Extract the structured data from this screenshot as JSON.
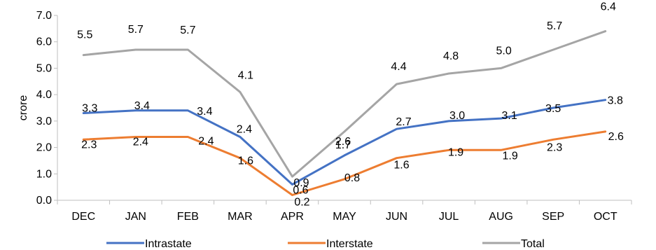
{
  "chart_data": {
    "type": "line",
    "ylabel": "crore",
    "ylim": [
      0,
      7
    ],
    "yticks": [
      "0.0",
      "1.0",
      "2.0",
      "3.0",
      "4.0",
      "5.0",
      "6.0",
      "7.0"
    ],
    "categories": [
      "DEC",
      "JAN",
      "FEB",
      "MAR",
      "APR",
      "MAY",
      "JUN",
      "JUL",
      "AUG",
      "SEP",
      "OCT"
    ],
    "grid": false,
    "legend": "bottom",
    "series": [
      {
        "name": "Intrastate",
        "color": "#4472C4",
        "values": [
          3.3,
          3.4,
          3.4,
          2.4,
          0.6,
          1.7,
          2.7,
          3.0,
          3.1,
          3.5,
          3.8
        ],
        "labels": [
          "3.3",
          "3.4",
          "3.4",
          "2.4",
          "0.6",
          "1.7",
          "2.7",
          "3.0",
          "3.1",
          "3.5",
          "3.8"
        ]
      },
      {
        "name": "Interstate",
        "color": "#ED7D31",
        "values": [
          2.3,
          2.4,
          2.4,
          1.6,
          0.2,
          0.8,
          1.6,
          1.9,
          1.9,
          2.3,
          2.6
        ],
        "labels": [
          "2.3",
          "2.4",
          "2.4",
          "1.6",
          "0.2",
          "0.8",
          "1.6",
          "1.9",
          "1.9",
          "2.3",
          "2.6"
        ]
      },
      {
        "name": "Total",
        "color": "#A5A5A5",
        "values": [
          5.5,
          5.7,
          5.7,
          4.1,
          0.9,
          2.6,
          4.4,
          4.8,
          5.0,
          5.7,
          6.4
        ],
        "labels": [
          "5.5",
          "5.7",
          "5.7",
          "4.1",
          "0.9",
          "2.6",
          "4.4",
          "4.8",
          "5.0",
          "5.7",
          "6.4"
        ]
      }
    ]
  }
}
